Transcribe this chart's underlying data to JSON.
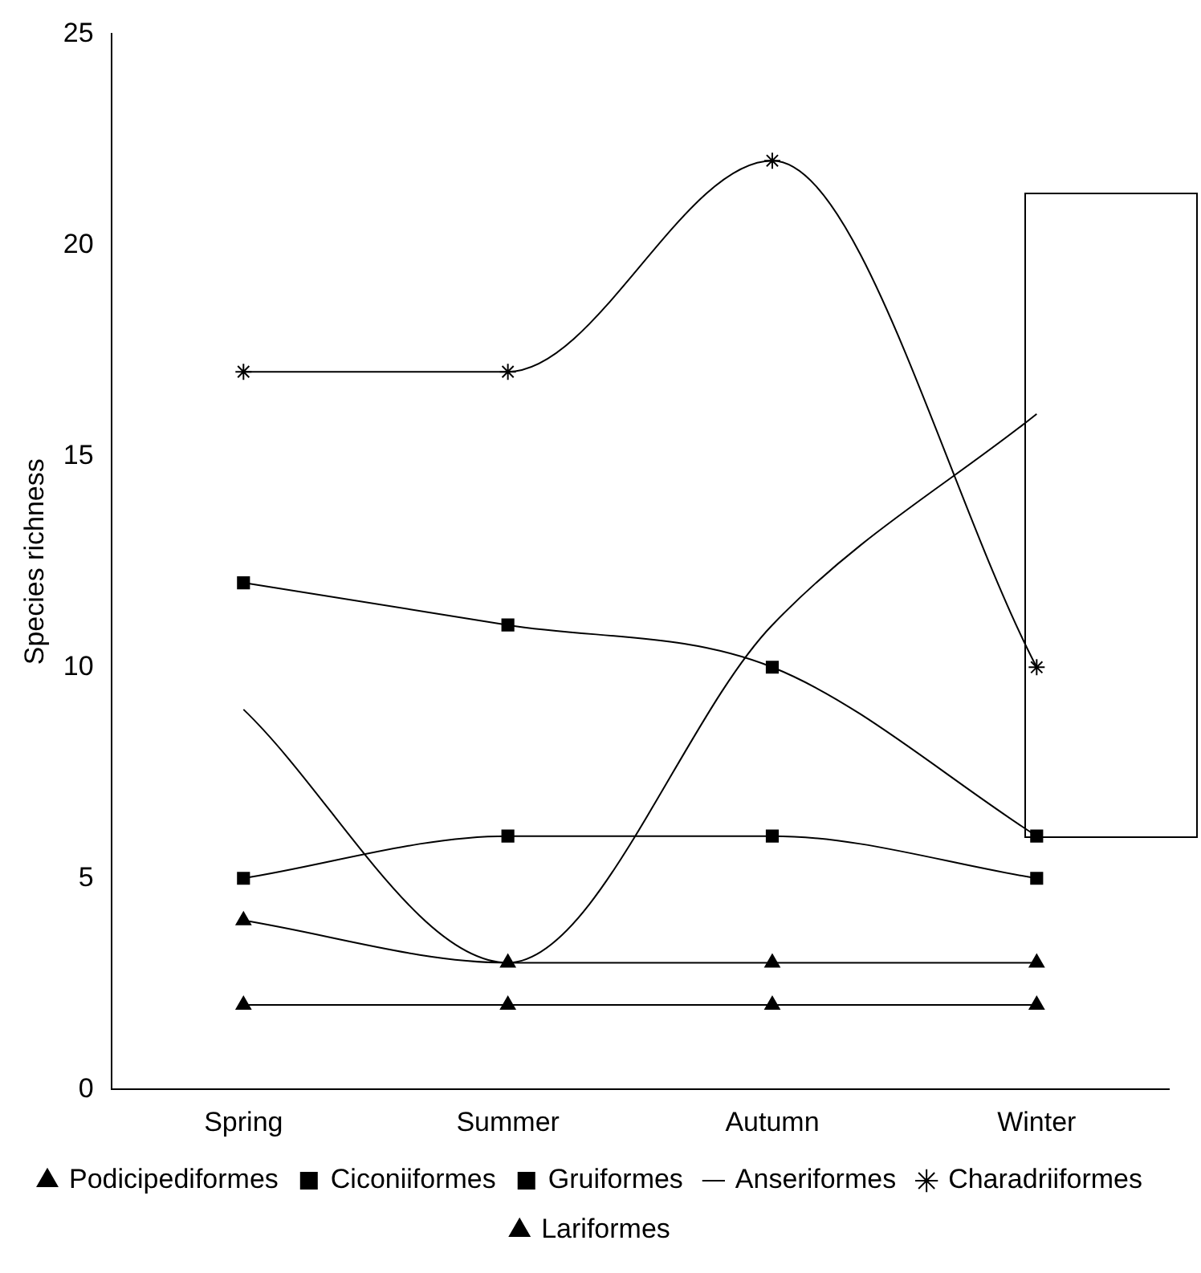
{
  "chart_data": {
    "type": "line",
    "ylabel": "Species richness",
    "categories": [
      "Spring",
      "Summer",
      "Autumn",
      "Winter"
    ],
    "series": [
      {
        "name": "Podicipediformes",
        "color": "#000000",
        "marker": "triangle",
        "values": [
          2,
          2,
          2,
          2
        ]
      },
      {
        "name": "Ciconiiformes",
        "color": "#000000",
        "marker": "square",
        "values": [
          12,
          11,
          10,
          6
        ]
      },
      {
        "name": "Gruiformes",
        "color": "#000000",
        "marker": "square",
        "values": [
          5,
          6,
          6,
          5
        ]
      },
      {
        "name": "Anseriformes",
        "color": "#000000",
        "marker": "none",
        "values": [
          9,
          3,
          11,
          16
        ]
      },
      {
        "name": "Charadriiformes",
        "color": "#000000",
        "marker": "cross",
        "values": [
          17,
          17,
          22,
          10
        ]
      },
      {
        "name": "Lariformes",
        "color": "#000000",
        "marker": "triangle",
        "values": [
          4,
          3,
          3,
          3
        ]
      }
    ],
    "ylim": [
      0,
      25
    ],
    "yticks": [
      0,
      5,
      10,
      15,
      20,
      25
    ],
    "grid": false,
    "legend": "bottom"
  }
}
